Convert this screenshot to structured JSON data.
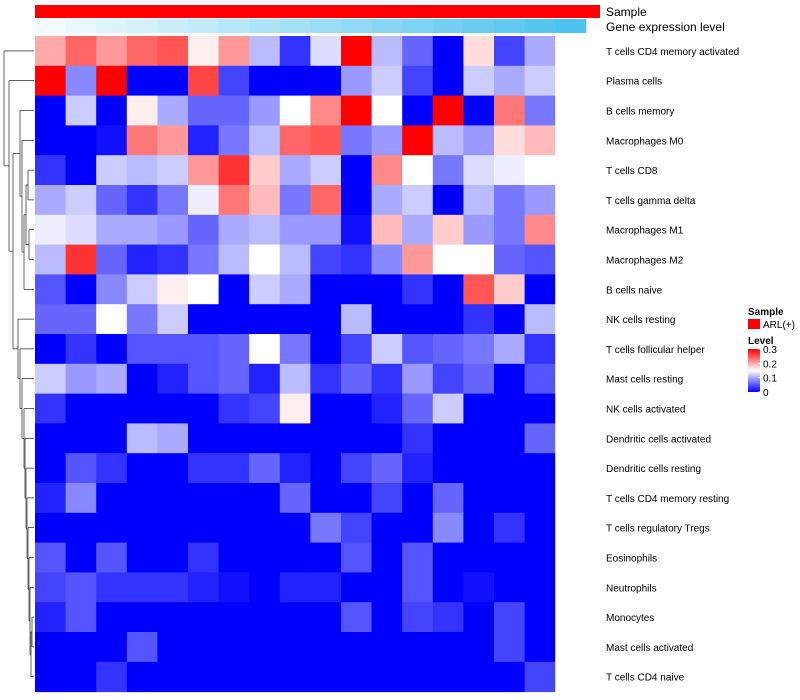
{
  "chart_data": {
    "type": "heatmap",
    "title": "",
    "annotation_tracks": [
      {
        "label": "Sample",
        "kind": "categorical",
        "color": "#ff0000"
      },
      {
        "label": "Gene expression level",
        "kind": "gradient",
        "color_low": "#f2fbff",
        "color_high": "#4cc3ee"
      }
    ],
    "rows": [
      "T cells CD4 memory activated",
      "Plasma cells",
      "B cells memory",
      "Macrophages M0",
      "T cells CD8",
      "T cells gamma delta",
      "Macrophages M1",
      "Macrophages M2",
      "B cells naive",
      "NK cells resting",
      "T cells follicular helper",
      "Mast cells resting",
      "NK cells activated",
      "Dendritic cells activated",
      "Dendritic cells resting",
      "T cells CD4 memory resting",
      "T cells regulatory  Tregs",
      "Eosinophils",
      "Neutrophils",
      "Monocytes",
      "Mast cells activated",
      "T cells CD4 naive"
    ],
    "n_columns": 18,
    "values": [
      [
        0.2,
        0.24,
        0.21,
        0.24,
        0.25,
        0.16,
        0.21,
        0.11,
        0.03,
        0.13,
        0.3,
        0.11,
        0.06,
        0.0,
        0.17,
        0.04,
        0.1,
        null
      ],
      [
        0.3,
        0.08,
        0.3,
        0.0,
        0.0,
        0.26,
        0.04,
        0.0,
        0.0,
        0.0,
        0.09,
        0.12,
        0.04,
        0.0,
        0.12,
        0.1,
        0.12,
        null
      ],
      [
        0.0,
        0.12,
        0.0,
        0.16,
        0.1,
        0.06,
        0.06,
        0.09,
        0.15,
        0.22,
        0.3,
        0.15,
        0.0,
        0.3,
        0.0,
        0.23,
        0.07,
        null
      ],
      [
        0.0,
        0.0,
        0.01,
        0.23,
        0.21,
        0.02,
        0.07,
        0.11,
        0.24,
        0.25,
        0.07,
        0.09,
        0.3,
        0.11,
        0.09,
        0.17,
        0.19,
        null
      ],
      [
        0.03,
        0.0,
        0.12,
        0.11,
        0.12,
        0.21,
        0.27,
        0.18,
        0.1,
        0.12,
        0.0,
        0.22,
        0.15,
        0.07,
        0.13,
        0.14,
        0.15,
        null
      ],
      [
        0.1,
        0.12,
        0.06,
        0.03,
        0.07,
        0.14,
        0.23,
        0.19,
        0.07,
        0.24,
        0.0,
        0.1,
        0.12,
        0.0,
        0.11,
        0.07,
        0.09,
        null
      ],
      [
        0.14,
        0.13,
        0.1,
        0.1,
        0.09,
        0.06,
        0.1,
        0.11,
        0.09,
        0.09,
        0.01,
        0.19,
        0.1,
        0.18,
        0.09,
        0.07,
        0.22,
        null
      ],
      [
        0.11,
        0.27,
        0.06,
        0.02,
        0.03,
        0.07,
        0.11,
        0.15,
        0.11,
        0.04,
        0.03,
        0.08,
        0.21,
        0.15,
        0.15,
        0.06,
        0.05,
        null
      ],
      [
        0.05,
        0.0,
        0.08,
        0.12,
        0.16,
        0.15,
        0.0,
        0.12,
        0.1,
        0.0,
        0.0,
        0.0,
        0.03,
        0.0,
        0.25,
        0.18,
        0.0,
        null
      ],
      [
        0.06,
        0.06,
        0.15,
        0.07,
        0.12,
        0.0,
        0.0,
        0.0,
        0.0,
        0.0,
        0.11,
        0.0,
        0.0,
        0.0,
        0.03,
        0.0,
        0.11,
        null
      ],
      [
        0.0,
        0.03,
        0.0,
        0.05,
        0.05,
        0.05,
        0.06,
        0.15,
        0.07,
        0.0,
        0.04,
        0.12,
        0.05,
        0.06,
        0.07,
        0.1,
        0.03,
        null
      ],
      [
        0.12,
        0.09,
        0.1,
        0.0,
        0.02,
        0.05,
        0.06,
        0.02,
        0.11,
        0.03,
        0.06,
        0.03,
        0.09,
        0.04,
        0.06,
        0.0,
        0.05,
        null
      ],
      [
        0.03,
        0.0,
        0.0,
        0.0,
        0.0,
        0.0,
        0.03,
        0.04,
        0.16,
        0.0,
        0.0,
        0.02,
        0.06,
        0.12,
        0.0,
        0.0,
        0.0,
        null
      ],
      [
        0.0,
        0.0,
        0.0,
        0.11,
        0.1,
        0.0,
        0.0,
        0.0,
        0.0,
        0.0,
        0.0,
        0.0,
        0.03,
        0.0,
        0.0,
        0.0,
        0.06,
        null
      ],
      [
        0.0,
        0.05,
        0.03,
        0.0,
        0.0,
        0.03,
        0.03,
        0.06,
        0.02,
        0.0,
        0.04,
        0.06,
        0.02,
        0.0,
        0.0,
        0.0,
        0.0,
        null
      ],
      [
        0.02,
        0.08,
        0.0,
        0.0,
        0.0,
        0.0,
        0.0,
        0.0,
        0.06,
        0.0,
        0.0,
        0.04,
        0.0,
        0.06,
        0.0,
        0.0,
        0.0,
        null
      ],
      [
        0.0,
        0.0,
        0.0,
        0.0,
        0.0,
        0.0,
        0.0,
        0.0,
        0.0,
        0.07,
        0.04,
        0.0,
        0.0,
        0.08,
        0.0,
        0.03,
        0.0,
        null
      ],
      [
        0.05,
        0.0,
        0.05,
        0.0,
        0.0,
        0.03,
        0.0,
        0.0,
        0.0,
        0.0,
        0.05,
        0.0,
        0.05,
        0.0,
        0.0,
        0.0,
        0.0,
        null
      ],
      [
        0.04,
        0.05,
        0.03,
        0.03,
        0.03,
        0.02,
        0.01,
        0.0,
        0.02,
        0.02,
        0.0,
        0.0,
        0.05,
        0.0,
        0.01,
        0.0,
        0.0,
        null
      ],
      [
        0.02,
        0.05,
        0.0,
        0.0,
        0.0,
        0.0,
        0.0,
        0.0,
        0.0,
        0.0,
        0.05,
        0.0,
        0.04,
        0.03,
        0.0,
        0.04,
        0.0,
        null
      ],
      [
        0.0,
        0.0,
        0.0,
        0.05,
        0.0,
        0.0,
        0.0,
        0.0,
        0.0,
        0.0,
        0.0,
        0.0,
        0.0,
        0.0,
        0.0,
        0.04,
        0.0,
        null
      ],
      [
        0.0,
        0.0,
        0.03,
        0.0,
        0.0,
        0.0,
        0.0,
        0.0,
        0.0,
        0.0,
        0.0,
        0.0,
        0.0,
        0.0,
        0.0,
        0.0,
        0.04,
        null
      ]
    ],
    "last_column_note": "partially visible at right edge",
    "color_scale": {
      "min": 0,
      "max": 0.3,
      "low_color": "#0000ff",
      "mid_color": "#ffffff",
      "high_color": "#ff0000",
      "midpoint": 0.15
    },
    "legend": {
      "sample": {
        "title": "Sample",
        "entries": [
          {
            "label": "ARL(+)",
            "color": "#ff0000"
          }
        ]
      },
      "level": {
        "title": "Level",
        "ticks": [
          {
            "label": "0.3",
            "value": 0.3
          },
          {
            "label": "0.2",
            "value": 0.2
          },
          {
            "label": "0.1",
            "value": 0.1
          },
          {
            "label": "0",
            "value": 0
          }
        ]
      }
    },
    "dendrogram": {
      "side": "left",
      "orientation": "rows"
    }
  }
}
